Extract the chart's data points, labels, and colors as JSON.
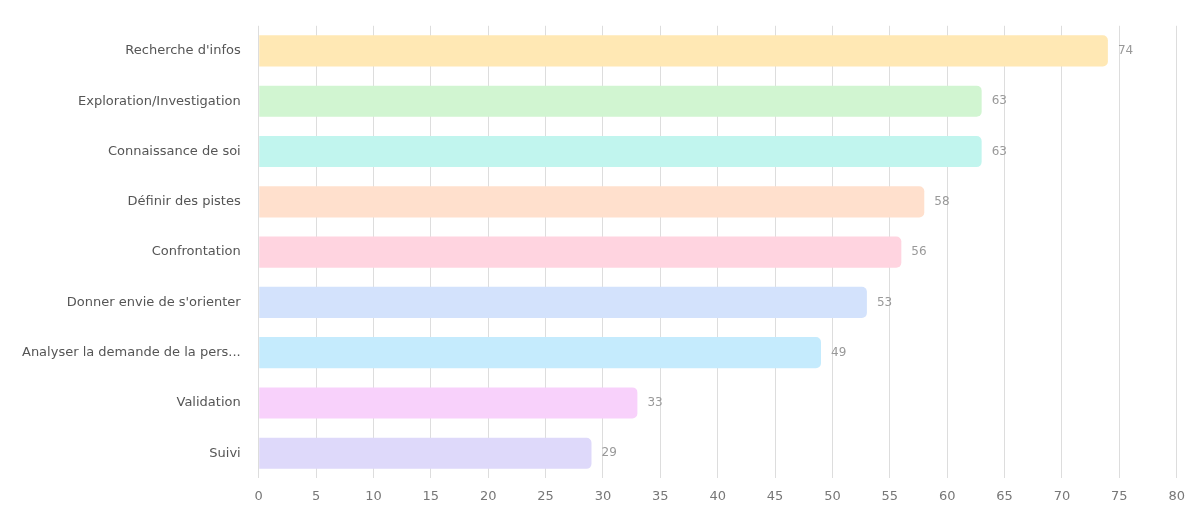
{
  "chart_data": {
    "type": "bar",
    "orientation": "horizontal",
    "categories": [
      "Recherche d'infos",
      "Exploration/Investigation",
      "Connaissance de soi",
      "Définir des pistes",
      "Confrontation",
      "Donner envie de s'orienter",
      "Analyser la demande de la pers...",
      "Validation",
      "Suivi"
    ],
    "values": [
      74,
      63,
      63,
      58,
      56,
      53,
      49,
      33,
      29
    ],
    "colors": [
      "#ffe8b4",
      "#d1f5d1",
      "#c1f5ee",
      "#ffe0cd",
      "#ffd4e0",
      "#d3e2fc",
      "#c5ebfd",
      "#f8d1fb",
      "#ded9fa"
    ],
    "xlim": [
      0,
      80
    ],
    "xticks": [
      0,
      5,
      10,
      15,
      20,
      25,
      30,
      35,
      40,
      45,
      50,
      55,
      60,
      65,
      70,
      75,
      80
    ],
    "grid": "x",
    "data_labels": true
  }
}
